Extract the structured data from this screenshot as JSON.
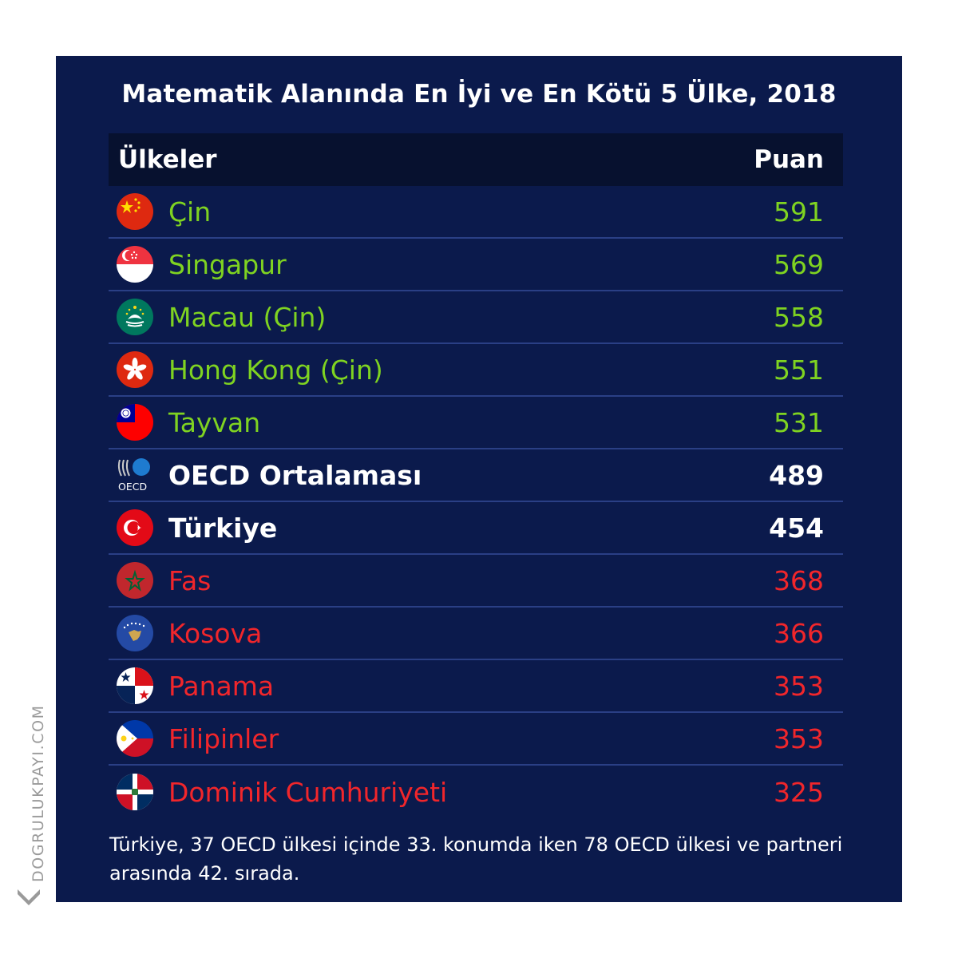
{
  "title": "Matematik Alanında En İyi ve En Kötü 5 Ülke, 2018",
  "header": {
    "country_label": "Ülkeler",
    "score_label": "Puan"
  },
  "rows": [
    {
      "name": "Çin",
      "score": "591",
      "group": "top",
      "flag": "china-flag-icon"
    },
    {
      "name": "Singapur",
      "score": "569",
      "group": "top",
      "flag": "singapore-flag-icon"
    },
    {
      "name": "Macau (Çin)",
      "score": "558",
      "group": "top",
      "flag": "macau-flag-icon"
    },
    {
      "name": "Hong Kong (Çin)",
      "score": "551",
      "group": "top",
      "flag": "hong-kong-flag-icon"
    },
    {
      "name": "Tayvan",
      "score": "531",
      "group": "top",
      "flag": "taiwan-flag-icon"
    },
    {
      "name": "OECD Ortalaması",
      "score": "489",
      "group": "mid",
      "flag": "oecd-logo"
    },
    {
      "name": "Türkiye",
      "score": "454",
      "group": "mid",
      "flag": "turkey-flag-icon"
    },
    {
      "name": "Fas",
      "score": "368",
      "group": "bottom",
      "flag": "morocco-flag-icon"
    },
    {
      "name": "Kosova",
      "score": "366",
      "group": "bottom",
      "flag": "kosovo-flag-icon"
    },
    {
      "name": "Panama",
      "score": "353",
      "group": "bottom",
      "flag": "panama-flag-icon"
    },
    {
      "name": "Filipinler",
      "score": "353",
      "group": "bottom",
      "flag": "philippines-flag-icon"
    },
    {
      "name": "Dominik Cumhuriyeti",
      "score": "325",
      "group": "bottom",
      "flag": "dominican-republic-flag-icon"
    }
  ],
  "note": "Türkiye, 37 OECD ülkesi içinde 33. konumda iken 78 OECD ülkesi ve partneri arasında 42. sırada.",
  "brand": "DOGRULUKPAYI.COM",
  "colors": {
    "background": "#0b1a4c",
    "header": "#07112f",
    "top": "#7fd321",
    "bottom": "#f1262b",
    "mid": "#ffffff"
  },
  "chart_data": {
    "type": "table",
    "title": "Matematik Alanında En İyi ve En Kötü 5 Ülke, 2018",
    "columns": [
      "Ülkeler",
      "Puan"
    ],
    "categories": [
      "Çin",
      "Singapur",
      "Macau (Çin)",
      "Hong Kong (Çin)",
      "Tayvan",
      "OECD Ortalaması",
      "Türkiye",
      "Fas",
      "Kosova",
      "Panama",
      "Filipinler",
      "Dominik Cumhuriyeti"
    ],
    "values": [
      591,
      569,
      558,
      551,
      531,
      489,
      454,
      368,
      366,
      353,
      353,
      325
    ]
  }
}
